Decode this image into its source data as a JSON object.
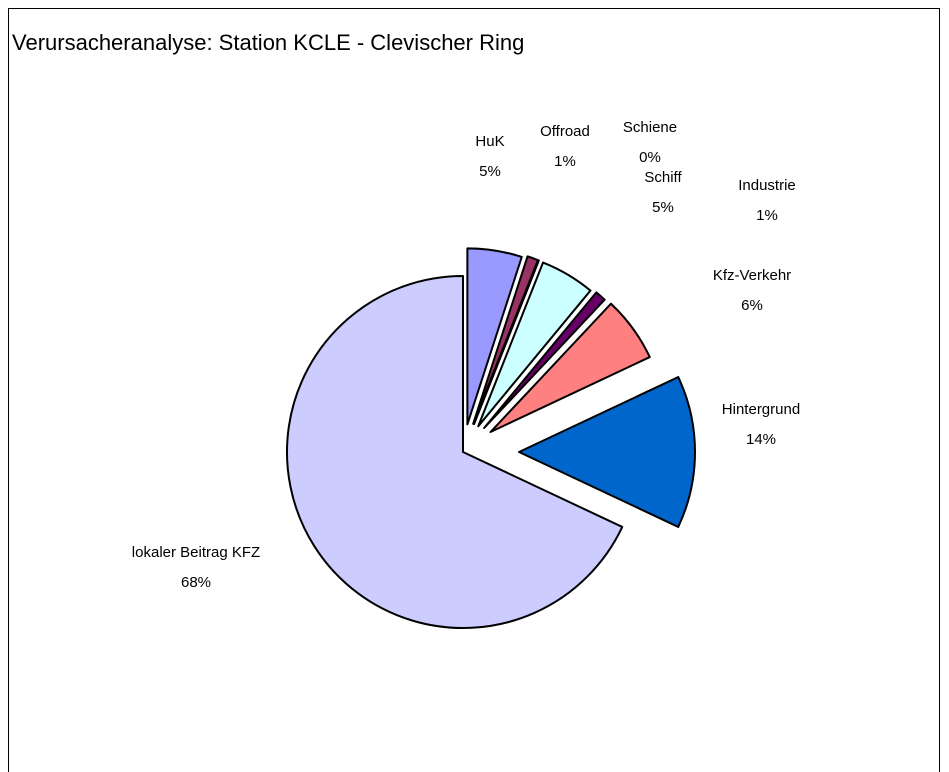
{
  "chart_data": {
    "type": "pie",
    "title": "Verursacheranalyse: Station KCLE - Clevischer Ring",
    "categories": [
      "HuK",
      "Offroad",
      "Schiene",
      "Schiff",
      "Industrie",
      "Kfz-Verkehr",
      "Hintergrund",
      "lokaler Beitrag KFZ"
    ],
    "values": [
      5,
      1,
      0,
      5,
      1,
      6,
      14,
      68
    ],
    "value_labels": [
      "5%",
      "1%",
      "0%",
      "5%",
      "1%",
      "6%",
      "14%",
      "68%"
    ],
    "colors": [
      "#9999ff",
      "#993366",
      "#ffffcc",
      "#ccffff",
      "#660066",
      "#ff8080",
      "#0066cc",
      "#ccccff"
    ]
  }
}
